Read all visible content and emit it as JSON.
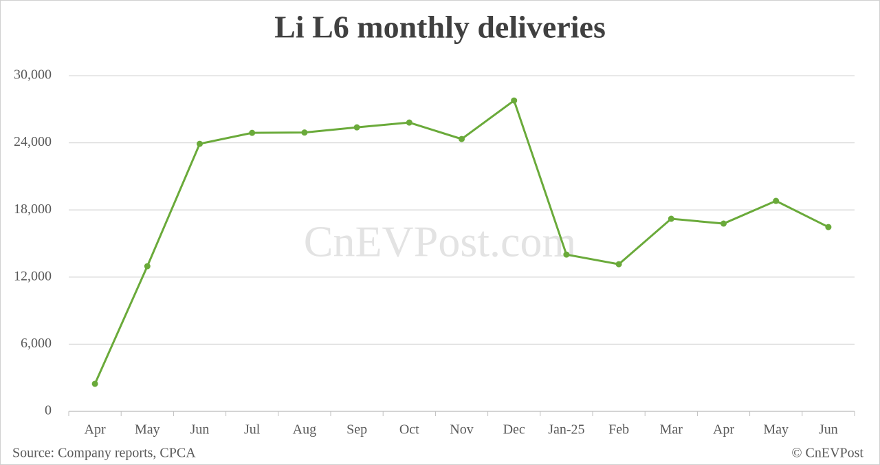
{
  "chart_data": {
    "type": "line",
    "title": "Li L6 monthly deliveries",
    "categories": [
      "Apr",
      "May",
      "Jun",
      "Jul",
      "Aug",
      "Sep",
      "Oct",
      "Nov",
      "Dec",
      "Jan-25",
      "Feb",
      "Mar",
      "Apr",
      "May",
      "Jun"
    ],
    "values": [
      2460,
      12970,
      23910,
      24890,
      24920,
      25380,
      25810,
      24340,
      27780,
      14010,
      13150,
      17210,
      16780,
      18810,
      16470
    ],
    "color": "#6aaa3a",
    "ylim": [
      0,
      30000
    ],
    "yticks": [
      0,
      {
        "value": 6000,
        "label": "6,000"
      },
      {
        "value": 12000,
        "label": "12,000"
      },
      {
        "value": 18000,
        "label": "18,000"
      },
      {
        "value": 24000,
        "label": "24,000"
      },
      {
        "value": 30000,
        "label": "30,000"
      }
    ],
    "grid": true,
    "watermark": "CnEVPost.com",
    "source": "Source: Company reports, CPCA",
    "copyright": "© CnEVPost"
  }
}
